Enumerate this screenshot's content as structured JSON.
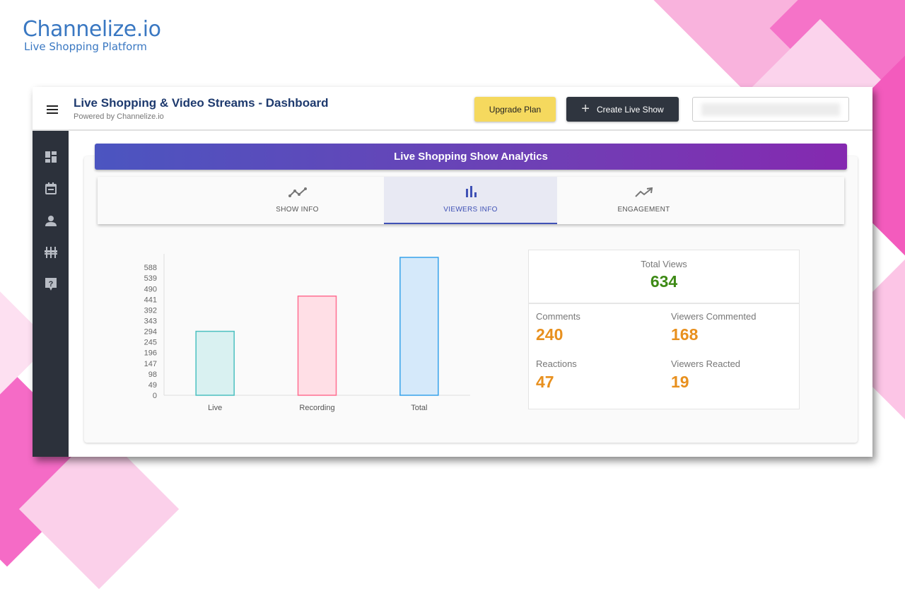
{
  "brand": {
    "name": "Channelize.io",
    "tagline": "Live Shopping Platform"
  },
  "header": {
    "title": "Live Shopping & Video Streams - Dashboard",
    "subtitle": "Powered by Channelize.io",
    "upgrade_label": "Upgrade Plan",
    "create_label": "Create Live Show"
  },
  "sidebar": {
    "icons": [
      "dashboard-icon",
      "calendar-icon",
      "person-icon",
      "settings-sliders-icon",
      "help-icon"
    ]
  },
  "banner": {
    "title": "Live Shopping Show Analytics"
  },
  "tabs": [
    {
      "label": "SHOW INFO",
      "icon": "timeline-icon"
    },
    {
      "label": "VIEWERS INFO",
      "icon": "bar-chart-icon",
      "active": true
    },
    {
      "label": "ENGAGEMENT",
      "icon": "trending-up-icon"
    }
  ],
  "chart_data": {
    "type": "bar",
    "categories": [
      "Live",
      "Recording",
      "Total"
    ],
    "values": [
      294,
      456,
      634
    ],
    "yticks": [
      0,
      49,
      98,
      147,
      196,
      245,
      294,
      343,
      392,
      441,
      490,
      539,
      588
    ],
    "ylim": [
      0,
      634
    ],
    "colors": {
      "fill": [
        "#d9f1f1",
        "#ffdfe6",
        "#d5e9fa"
      ],
      "stroke": [
        "#4bc0c0",
        "#ff6f91",
        "#36a2eb"
      ]
    }
  },
  "stats": {
    "total_views": {
      "label": "Total Views",
      "value": "634"
    },
    "items": [
      {
        "label": "Comments",
        "value": "240"
      },
      {
        "label": "Viewers Commented",
        "value": "168"
      },
      {
        "label": "Reactions",
        "value": "47"
      },
      {
        "label": "Viewers Reacted",
        "value": "19"
      }
    ]
  }
}
